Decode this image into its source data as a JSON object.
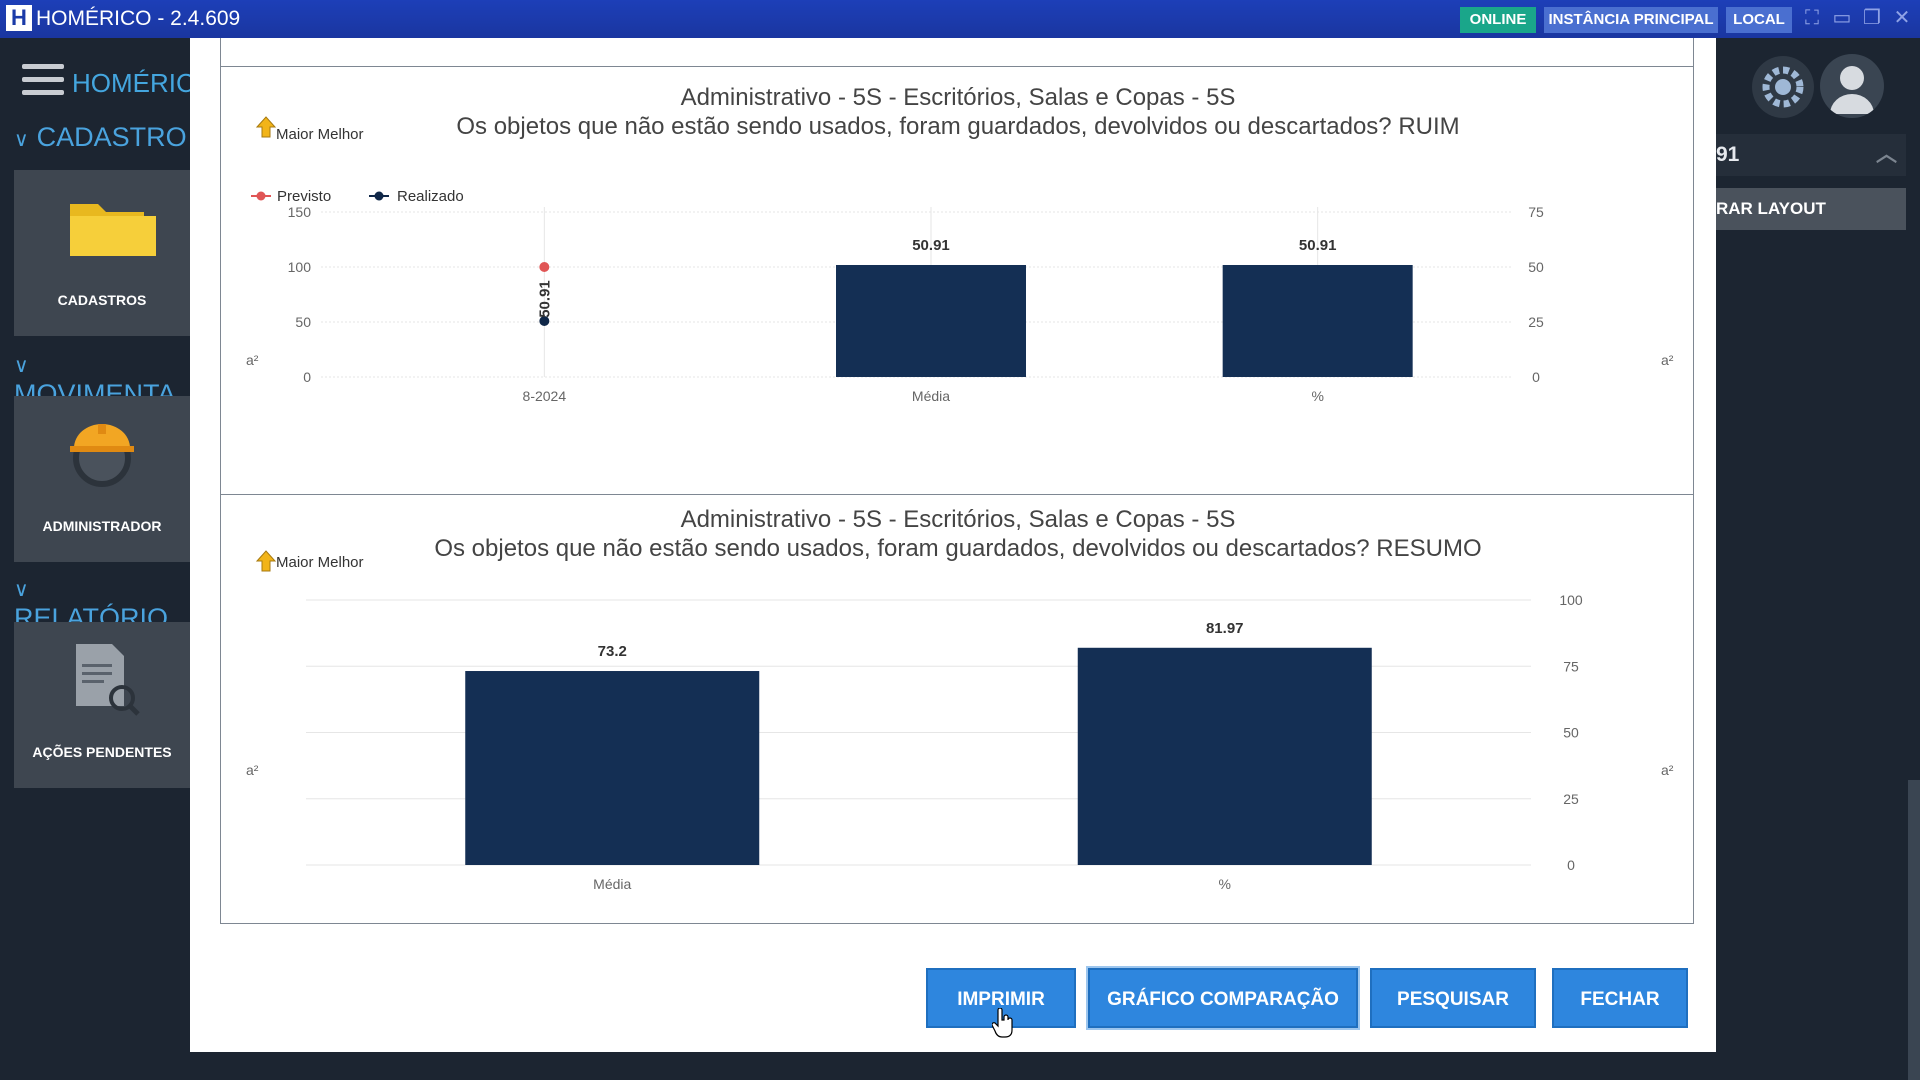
{
  "app": {
    "title": "HOMÉRICO - 2.4.609",
    "logo_letter": "H",
    "status": "ONLINE",
    "instance": "INSTÂNCIA PRINCIPAL",
    "mode": "LOCAL"
  },
  "sidebar": {
    "brand": "HOMÉRICO",
    "sections": [
      {
        "label": "CADASTRO",
        "tile": "CADASTROS",
        "icon": "folder-icon"
      },
      {
        "label": "MOVIMENTA",
        "tile": "ADMINISTRADOR",
        "icon": "engineer-icon"
      },
      {
        "label": "RELATÓRIO",
        "tile": "AÇÕES PENDENTES",
        "icon": "report-search-icon"
      }
    ]
  },
  "right_panel": {
    "field_value": "91",
    "button_label": "RAR LAYOUT"
  },
  "colors": {
    "titlebar": "#1a36a0",
    "online": "#1aa68a",
    "badge": "#4a6fd0",
    "bar": "#142f54",
    "previsto": "#e05555",
    "realizado": "#0f2748",
    "button": "#2e86de"
  },
  "chart_data": [
    {
      "type": "bar",
      "title": "Administrativo - 5S - Escritórios, Salas e Copas - 5S",
      "subtitle": "Os objetos que não estão sendo usados, foram guardados, devolvidos ou descartados? RUIM",
      "badge": "Maior Melhor",
      "legend": [
        "Previsto",
        "Realizado"
      ],
      "categories": [
        "8-2024",
        "Média",
        "%"
      ],
      "series": [
        {
          "name": "Previsto",
          "type": "point",
          "values": [
            100,
            null,
            null
          ]
        },
        {
          "name": "Realizado",
          "type": "point",
          "values": [
            50.91,
            null,
            null
          ]
        }
      ],
      "bars_right_axis": [
        null,
        50.91,
        50.91
      ],
      "point_label": "50.91",
      "bar_labels": [
        "",
        "50.91",
        "50.91"
      ],
      "ylim_left": [
        0,
        150
      ],
      "yticks_left": [
        "150",
        "100",
        "50",
        "0"
      ],
      "ylim_right": [
        0,
        75
      ],
      "yticks_right": [
        "75",
        "50",
        "25",
        "0"
      ],
      "axis_unit": "a²",
      "grid": true
    },
    {
      "type": "bar",
      "title": "Administrativo - 5S - Escritórios, Salas e Copas - 5S",
      "subtitle": "Os objetos que não estão sendo usados, foram guardados, devolvidos ou descartados? RESUMO",
      "badge": "Maior Melhor",
      "categories": [
        "Média",
        "%"
      ],
      "values": [
        73.2,
        81.97
      ],
      "bar_labels": [
        "73.2",
        "81.97"
      ],
      "ylim_right": [
        0,
        100
      ],
      "yticks_right": [
        "100",
        "75",
        "50",
        "25",
        "0"
      ],
      "axis_unit": "a²",
      "grid": true
    }
  ],
  "buttons": {
    "print": "IMPRIMIR",
    "compare": "GRÁFICO COMPARAÇÃO",
    "search": "PESQUISAR",
    "close": "FECHAR"
  }
}
